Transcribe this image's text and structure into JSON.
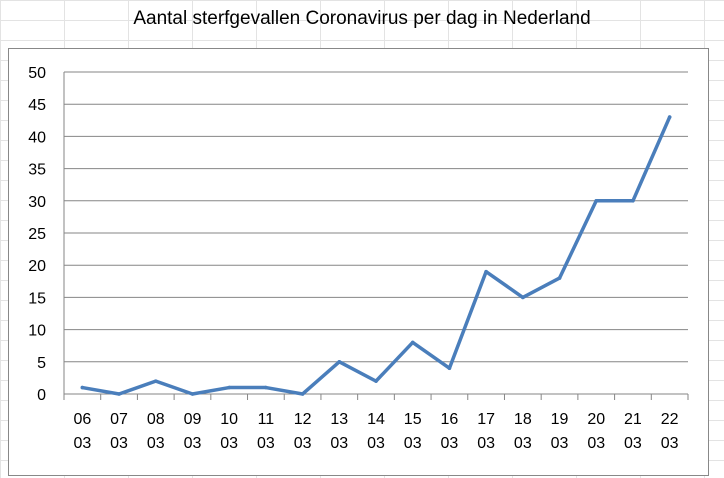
{
  "chart_data": {
    "type": "line",
    "title": "Aantal sterfgevallen Coronavirus per dag in Nederland",
    "xlabel": "",
    "ylabel": "",
    "categories": [
      [
        "06",
        "03"
      ],
      [
        "07",
        "03"
      ],
      [
        "08",
        "03"
      ],
      [
        "09",
        "03"
      ],
      [
        "10",
        "03"
      ],
      [
        "11",
        "03"
      ],
      [
        "12",
        "03"
      ],
      [
        "13",
        "03"
      ],
      [
        "14",
        "03"
      ],
      [
        "15",
        "03"
      ],
      [
        "16",
        "03"
      ],
      [
        "17",
        "03"
      ],
      [
        "18",
        "03"
      ],
      [
        "19",
        "03"
      ],
      [
        "20",
        "03"
      ],
      [
        "21",
        "03"
      ],
      [
        "22",
        "03"
      ]
    ],
    "series": [
      {
        "values": [
          1,
          0,
          2,
          0,
          1,
          1,
          0,
          5,
          2,
          8,
          4,
          19,
          15,
          18,
          30,
          30,
          43
        ]
      }
    ],
    "ylim": [
      0,
      50
    ],
    "yticks": [
      0,
      5,
      10,
      15,
      20,
      25,
      30,
      35,
      40,
      45,
      50
    ],
    "grid": true,
    "legend": "none",
    "line_color": "#4a7ebb",
    "grid_color": "#868686"
  }
}
